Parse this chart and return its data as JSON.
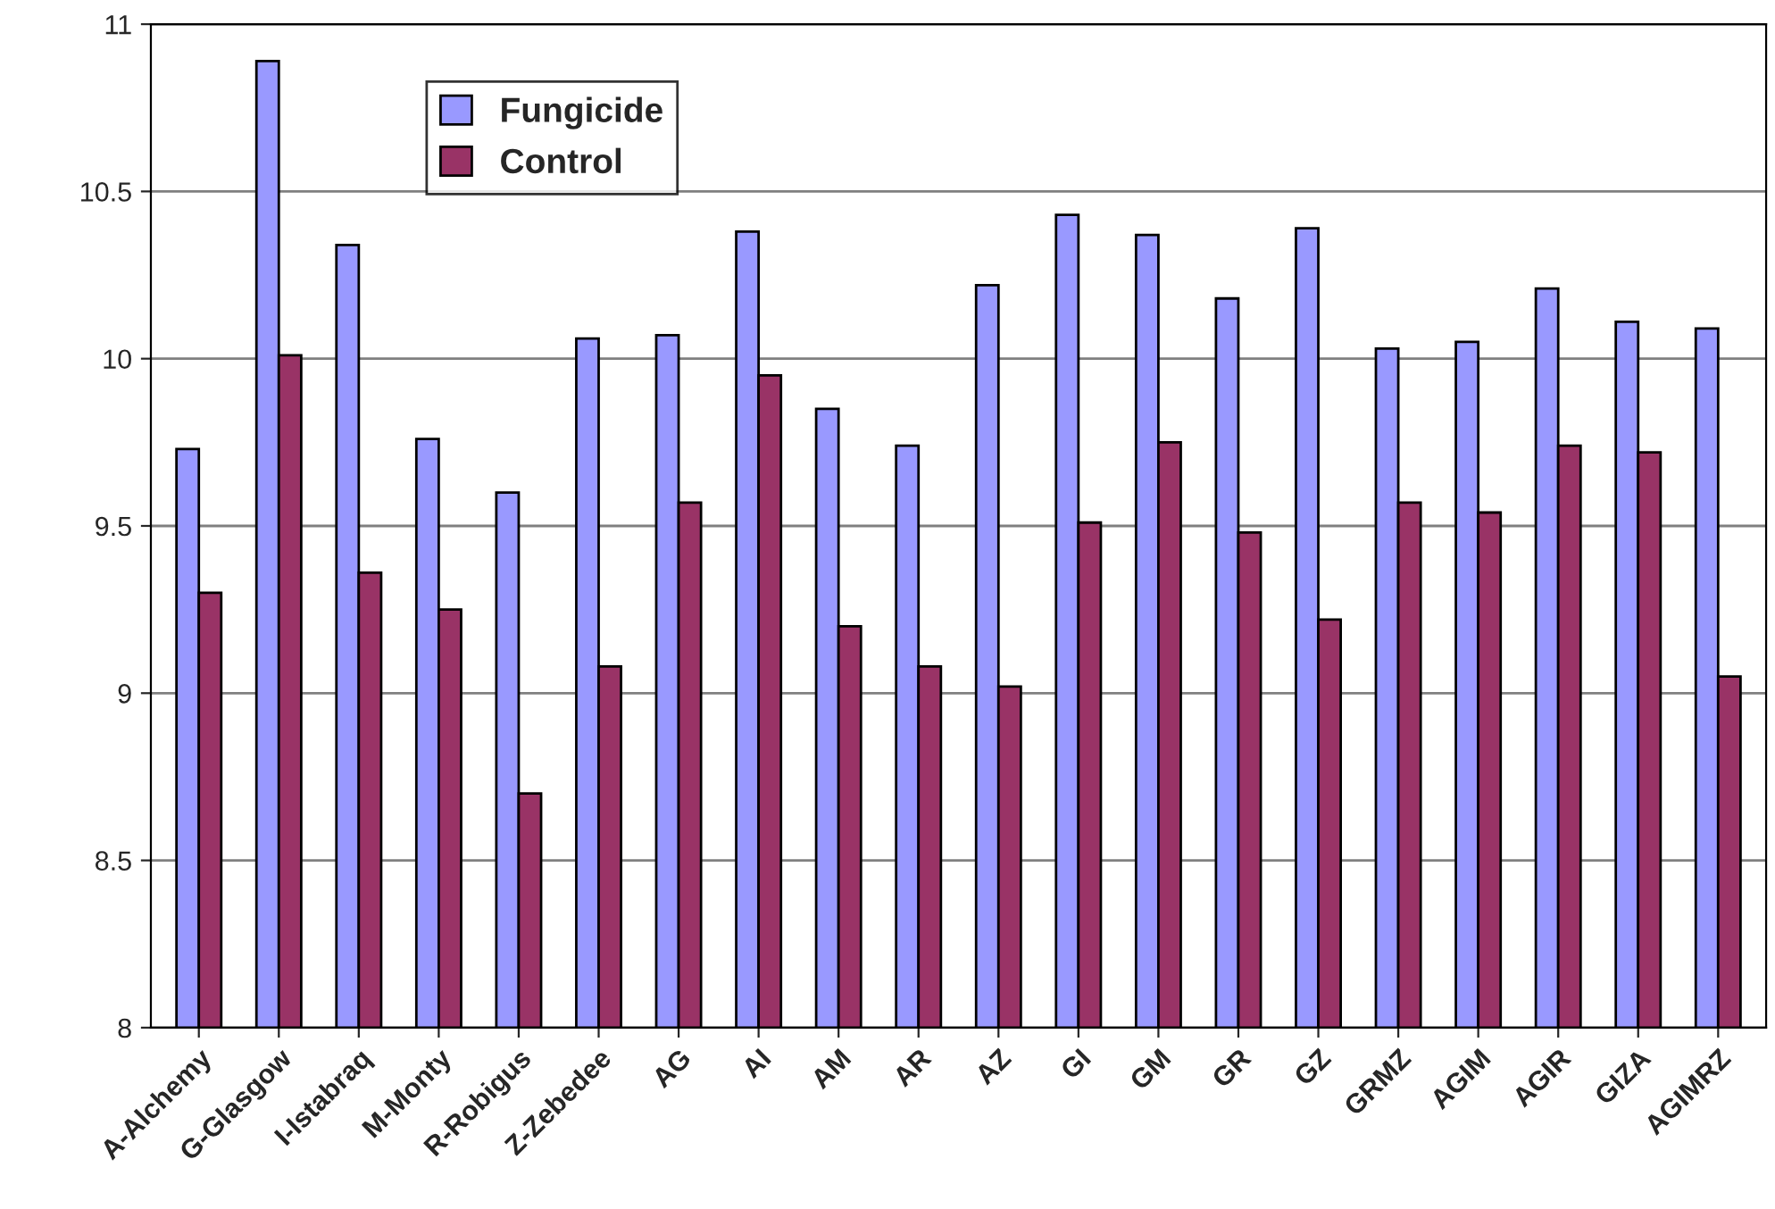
{
  "chart_data": {
    "type": "bar",
    "categories": [
      "A-Alchemy",
      "G-Glasgow",
      "I-Istabraq",
      "M-Monty",
      "R-Robigus",
      "Z-Zebedee",
      "AG",
      "AI",
      "AM",
      "AR",
      "AZ",
      "GI",
      "GM",
      "GR",
      "GZ",
      "GRMZ",
      "AGIM",
      "AGIR",
      "GIZA",
      "AGIMRZ"
    ],
    "series": [
      {
        "name": "Fungicide",
        "color": "#9999ff",
        "values": [
          9.73,
          10.89,
          10.34,
          9.76,
          9.6,
          10.06,
          10.07,
          10.38,
          9.85,
          9.74,
          10.22,
          10.43,
          10.37,
          10.18,
          10.39,
          10.03,
          10.05,
          10.21,
          10.11,
          10.09
        ]
      },
      {
        "name": "Control",
        "color": "#993366",
        "values": [
          9.3,
          10.01,
          9.36,
          9.25,
          8.7,
          9.08,
          9.57,
          9.95,
          9.2,
          9.08,
          9.02,
          9.51,
          9.75,
          9.48,
          9.22,
          9.57,
          9.54,
          9.74,
          9.72,
          9.05
        ]
      }
    ],
    "ylim": [
      8,
      11
    ],
    "yticks": [
      8,
      {
        "value": 8.5,
        "label": "8.5"
      },
      9,
      {
        "value": 9.5,
        "label": "9.5"
      },
      10,
      {
        "value": 10.5,
        "label": "10.5"
      },
      11
    ],
    "grid": "y",
    "legend": "top left"
  }
}
